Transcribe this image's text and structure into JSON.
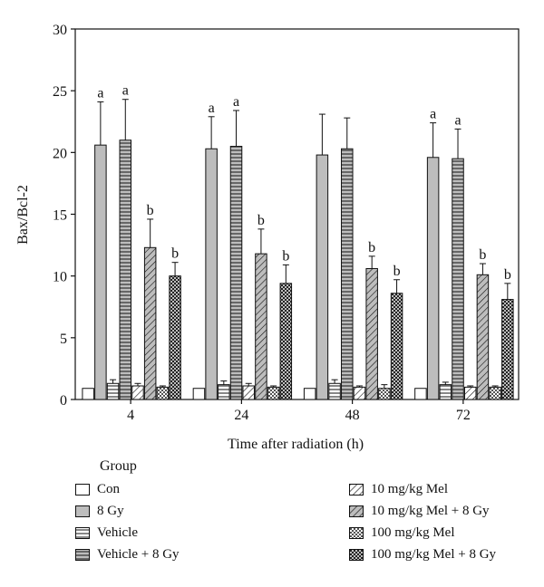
{
  "chart_data": {
    "type": "bar",
    "title": "",
    "xlabel": "Time after radiation (h)",
    "ylabel": "Bax/Bcl-2",
    "ylim": [
      0,
      30
    ],
    "yticks": [
      0,
      5,
      10,
      15,
      20,
      25,
      30
    ],
    "categories": [
      "4",
      "24",
      "48",
      "72"
    ],
    "legend_title": "Group",
    "series": [
      {
        "name": "Con",
        "pattern": "white",
        "values": [
          0.9,
          0.9,
          0.9,
          0.9
        ],
        "errors": [
          0,
          0,
          0,
          0
        ],
        "labels": [
          "",
          "",
          "",
          ""
        ]
      },
      {
        "name": "8 Gy",
        "pattern": "gray",
        "values": [
          20.6,
          20.3,
          19.8,
          19.6
        ],
        "errors": [
          3.5,
          2.6,
          3.3,
          2.8
        ],
        "labels": [
          "a",
          "a",
          "",
          "a"
        ]
      },
      {
        "name": "Vehicle",
        "pattern": "hstripe",
        "values": [
          1.3,
          1.2,
          1.3,
          1.2
        ],
        "errors": [
          0.3,
          0.3,
          0.3,
          0.2
        ],
        "labels": [
          "",
          "",
          "",
          ""
        ]
      },
      {
        "name": "Vehicle + 8 Gy",
        "pattern": "hstripe-gray",
        "values": [
          21.0,
          20.5,
          20.3,
          19.5
        ],
        "errors": [
          3.3,
          2.9,
          2.5,
          2.4
        ],
        "labels": [
          "a",
          "a",
          "",
          "a"
        ]
      },
      {
        "name": "10 mg/kg Mel",
        "pattern": "diag",
        "values": [
          1.1,
          1.1,
          1.0,
          1.0
        ],
        "errors": [
          0.2,
          0.2,
          0.1,
          0.1
        ],
        "labels": [
          "",
          "",
          "",
          ""
        ]
      },
      {
        "name": "10 mg/kg Mel + 8 Gy",
        "pattern": "diag-gray",
        "values": [
          12.3,
          11.8,
          10.6,
          10.1
        ],
        "errors": [
          2.3,
          2.0,
          1.0,
          0.9
        ],
        "labels": [
          "b",
          "b",
          "b",
          "b"
        ]
      },
      {
        "name": "100 mg/kg Mel",
        "pattern": "check",
        "values": [
          1.0,
          1.0,
          0.9,
          1.0
        ],
        "errors": [
          0.1,
          0.1,
          0.3,
          0.1
        ],
        "labels": [
          "",
          "",
          "",
          ""
        ]
      },
      {
        "name": "100 mg/kg Mel + 8 Gy",
        "pattern": "check-gray",
        "values": [
          10.0,
          9.4,
          8.6,
          8.1
        ],
        "errors": [
          1.1,
          1.5,
          1.1,
          1.3
        ],
        "labels": [
          "b",
          "b",
          "b",
          "b"
        ]
      }
    ]
  },
  "colors": {
    "gray": "#bdbdbd",
    "ink": "#111111",
    "white": "#ffffff"
  }
}
